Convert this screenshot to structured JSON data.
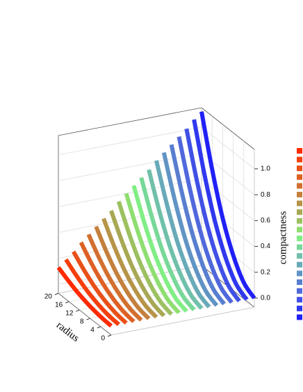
{
  "chart_data": {
    "type": "waterfall3d",
    "x_label": "radius",
    "y_label": "compactness",
    "x": [
      0,
      4,
      8,
      12,
      16,
      20
    ],
    "xlim": [
      0,
      20
    ],
    "xticks": [
      0,
      4,
      8,
      12,
      16,
      20
    ],
    "ylim": [
      -0.07,
      1.15
    ],
    "yticks": [
      {
        "value": 0,
        "label": "0.0"
      },
      {
        "value": 0.2,
        "label": "0.2"
      },
      {
        "value": 0.4,
        "label": "0.4"
      },
      {
        "value": 0.6,
        "label": "0.6"
      },
      {
        "value": 0.8,
        "label": "0.8"
      },
      {
        "value": 1,
        "label": "1.0"
      }
    ],
    "grid": true,
    "series": [
      {
        "color": "#ff2a00",
        "values": [
          0,
          0.007,
          0.023,
          0.049,
          0.086,
          0.13
        ]
      },
      {
        "color": "#f43f0c",
        "values": [
          0,
          0.009,
          0.032,
          0.068,
          0.119,
          0.18
        ]
      },
      {
        "color": "#e95018",
        "values": [
          0,
          0.012,
          0.041,
          0.087,
          0.152,
          0.23
        ]
      },
      {
        "color": "#de6024",
        "values": [
          0,
          0.015,
          0.052,
          0.11,
          0.191,
          0.29
        ]
      },
      {
        "color": "#d27030",
        "values": [
          0,
          0.017,
          0.061,
          0.129,
          0.224,
          0.34
        ]
      },
      {
        "color": "#c4803c",
        "values": [
          0,
          0.02,
          0.07,
          0.148,
          0.257,
          0.39
        ]
      },
      {
        "color": "#b69448",
        "values": [
          0,
          0.022,
          0.079,
          0.167,
          0.29,
          0.44
        ]
      },
      {
        "color": "#a8a854",
        "values": [
          0,
          0.025,
          0.088,
          0.186,
          0.323,
          0.49
        ]
      },
      {
        "color": "#9cc060",
        "values": [
          0,
          0.028,
          0.099,
          0.209,
          0.363,
          0.55
        ]
      },
      {
        "color": "#8ede70",
        "values": [
          0,
          0.03,
          0.108,
          0.228,
          0.396,
          0.6
        ]
      },
      {
        "color": "#80ee84",
        "values": [
          0,
          0.033,
          0.117,
          0.247,
          0.429,
          0.65
        ]
      },
      {
        "color": "#78d898",
        "values": [
          0,
          0.035,
          0.126,
          0.266,
          0.462,
          0.7
        ]
      },
      {
        "color": "#70c0aa",
        "values": [
          0,
          0.038,
          0.135,
          0.285,
          0.495,
          0.75
        ]
      },
      {
        "color": "#68aab8",
        "values": [
          0,
          0.041,
          0.146,
          0.308,
          0.535,
          0.81
        ]
      },
      {
        "color": "#6094c4",
        "values": [
          0,
          0.043,
          0.155,
          0.327,
          0.568,
          0.86
        ]
      },
      {
        "color": "#587ed0",
        "values": [
          0,
          0.046,
          0.164,
          0.346,
          0.601,
          0.91
        ]
      },
      {
        "color": "#5068dc",
        "values": [
          0,
          0.048,
          0.173,
          0.365,
          0.634,
          0.96
        ]
      },
      {
        "color": "#4050e6",
        "values": [
          0,
          0.051,
          0.182,
          0.384,
          0.667,
          1.01
        ]
      },
      {
        "color": "#3038ee",
        "values": [
          0,
          0.054,
          0.193,
          0.407,
          0.706,
          1.07
        ]
      },
      {
        "color": "#2020f6",
        "values": [
          0,
          0.056,
          0.202,
          0.426,
          0.739,
          1.12
        ]
      }
    ]
  }
}
